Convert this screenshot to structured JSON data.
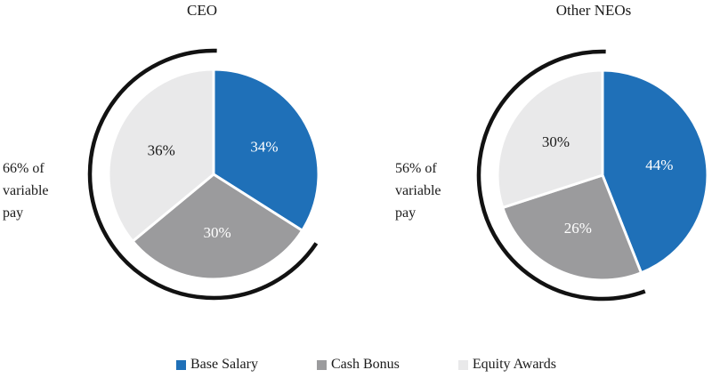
{
  "palette": {
    "base_salary": "#1f70b8",
    "cash_bonus": "#9b9b9d",
    "equity_awards": "#e9e9ea",
    "slice_border": "#ffffff",
    "arc_stroke": "#121212",
    "text": "#1a1a1a",
    "background": "#ffffff"
  },
  "chart_data": [
    {
      "type": "pie",
      "id": "ceo-pie",
      "title": "CEO",
      "categories": [
        "Base Salary",
        "Cash Bonus",
        "Equity Awards"
      ],
      "values": [
        34,
        30,
        36
      ],
      "unit": "%",
      "slice_labels": [
        "34%",
        "30%",
        "36%"
      ],
      "slice_colors": [
        "#1f70b8",
        "#9b9b9d",
        "#e9e9ea"
      ],
      "slice_label_colors": [
        "#ffffff",
        "#ffffff",
        "#1a1a1a"
      ],
      "start_angle": "top",
      "direction": "clockwise",
      "annotation": "66% of variable pay",
      "variable_pay_arc": {
        "covers_percent": 66,
        "excludes": "Base Salary"
      }
    },
    {
      "type": "pie",
      "id": "other-neos-pie",
      "title": "Other NEOs",
      "categories": [
        "Base Salary",
        "Cash Bonus",
        "Equity Awards"
      ],
      "values": [
        44,
        26,
        30
      ],
      "unit": "%",
      "slice_labels": [
        "44%",
        "26%",
        "30%"
      ],
      "slice_colors": [
        "#1f70b8",
        "#9b9b9d",
        "#e9e9ea"
      ],
      "slice_label_colors": [
        "#ffffff",
        "#ffffff",
        "#1a1a1a"
      ],
      "start_angle": "top",
      "direction": "clockwise",
      "annotation": "56% of variable pay",
      "variable_pay_arc": {
        "covers_percent": 56,
        "excludes": "Base Salary"
      }
    }
  ],
  "legend": {
    "position": "bottom",
    "items": [
      {
        "label": "Base Salary",
        "color": "#1f70b8"
      },
      {
        "label": "Cash Bonus",
        "color": "#9b9b9d"
      },
      {
        "label": "Equity Awards",
        "color": "#e9e9ea"
      }
    ]
  }
}
